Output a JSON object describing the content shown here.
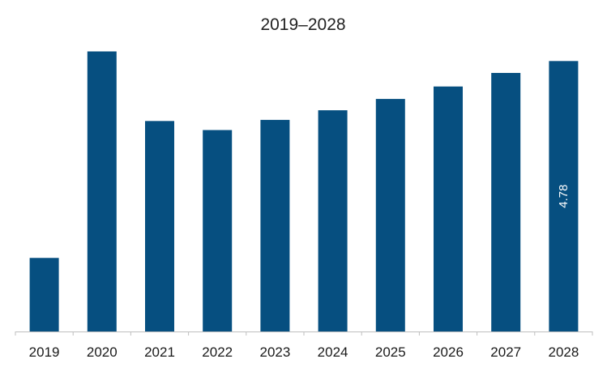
{
  "chart_data": {
    "type": "bar",
    "title": "2019–2028",
    "xlabel": "",
    "ylabel": "",
    "categories": [
      "2019",
      "2020",
      "2021",
      "2022",
      "2023",
      "2024",
      "2025",
      "2026",
      "2027",
      "2028"
    ],
    "values": [
      1.3,
      4.95,
      3.72,
      3.56,
      3.74,
      3.91,
      4.11,
      4.33,
      4.57,
      4.78
    ],
    "data_labels": [
      "",
      "",
      "",
      "",
      "",
      "",
      "",
      "",
      "",
      "4.78"
    ],
    "ylim": [
      0,
      5.2
    ],
    "grid": false,
    "legend": "none",
    "bar_color": "#064f80",
    "axis_color": "#bfbfbf"
  }
}
